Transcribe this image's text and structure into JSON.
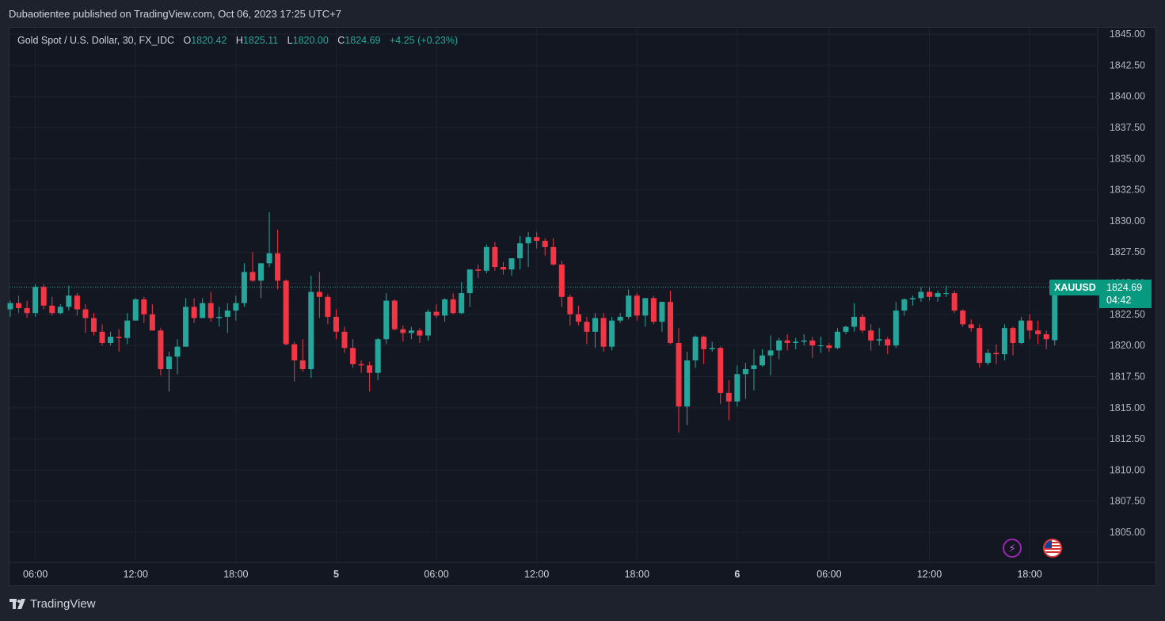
{
  "header": {
    "published_text": "Dubaotientee published on TradingView.com, Oct 06, 2023 17:25 UTC+7"
  },
  "legend": {
    "symbol_text": "Gold Spot / U.S. Dollar, 30, FX_IDC",
    "open_label": "O",
    "open_value": "1820.42",
    "high_label": "H",
    "high_value": "1825.11",
    "low_label": "L",
    "low_value": "1820.00",
    "close_label": "C",
    "close_value": "1824.69",
    "change_text": "+4.25 (+0.23%)"
  },
  "price_badge": {
    "symbol": "XAUUSD",
    "price": "1824.69",
    "countdown": "04:42"
  },
  "footer": {
    "brand": "TradingView"
  },
  "icons": {
    "lightning": "lightning-icon",
    "flag": "us-flag-icon"
  },
  "colors": {
    "up": "#26a69a",
    "down": "#f23645",
    "background": "#131722",
    "grid": "#1f2330",
    "badge": "#089981"
  },
  "chart_data": {
    "type": "candlestick",
    "interval": "30",
    "y_ticks": [
      "1845.00",
      "1842.50",
      "1840.00",
      "1837.50",
      "1835.00",
      "1832.50",
      "1830.00",
      "1827.50",
      "1825.00",
      "1822.50",
      "1820.00",
      "1817.50",
      "1815.00",
      "1812.50",
      "1810.00",
      "1807.50",
      "1805.00"
    ],
    "ylim": [
      1802.5,
      1845.8
    ],
    "x_ticks": [
      {
        "label": "06:00",
        "bar": 3,
        "bold": false
      },
      {
        "label": "12:00",
        "bar": 15,
        "bold": false
      },
      {
        "label": "18:00",
        "bar": 27,
        "bold": false
      },
      {
        "label": "5",
        "bar": 39,
        "bold": true
      },
      {
        "label": "06:00",
        "bar": 51,
        "bold": false
      },
      {
        "label": "12:00",
        "bar": 63,
        "bold": false
      },
      {
        "label": "18:00",
        "bar": 75,
        "bold": false
      },
      {
        "label": "6",
        "bar": 87,
        "bold": true
      },
      {
        "label": "06:00",
        "bar": 98,
        "bold": false
      },
      {
        "label": "12:00",
        "bar": 110,
        "bold": false
      },
      {
        "label": "18:00",
        "bar": 122,
        "bold": false
      }
    ],
    "last_price": 1824.69,
    "ohlc": [
      [
        1822.9,
        1823.6,
        1822.3,
        1823.4
      ],
      [
        1823.4,
        1824.0,
        1822.6,
        1823.0
      ],
      [
        1823.0,
        1823.6,
        1822.2,
        1822.6
      ],
      [
        1822.6,
        1824.9,
        1822.3,
        1824.7
      ],
      [
        1824.7,
        1824.9,
        1822.9,
        1823.2
      ],
      [
        1823.2,
        1823.9,
        1822.4,
        1822.6
      ],
      [
        1822.6,
        1823.3,
        1822.5,
        1823.1
      ],
      [
        1823.1,
        1824.8,
        1822.8,
        1824.0
      ],
      [
        1824.0,
        1824.2,
        1822.4,
        1822.9
      ],
      [
        1822.9,
        1823.3,
        1821.0,
        1822.2
      ],
      [
        1822.2,
        1822.6,
        1820.8,
        1821.1
      ],
      [
        1821.1,
        1821.7,
        1820.0,
        1820.2
      ],
      [
        1820.2,
        1821.1,
        1820.0,
        1820.7
      ],
      [
        1820.7,
        1821.3,
        1819.5,
        1820.6
      ],
      [
        1820.6,
        1822.6,
        1820.1,
        1822.0
      ],
      [
        1822.0,
        1823.8,
        1822.0,
        1823.7
      ],
      [
        1823.7,
        1823.9,
        1821.8,
        1822.5
      ],
      [
        1822.5,
        1823.3,
        1821.2,
        1821.2
      ],
      [
        1821.2,
        1821.4,
        1817.6,
        1818.1
      ],
      [
        1818.1,
        1819.5,
        1816.3,
        1819.1
      ],
      [
        1819.1,
        1820.5,
        1817.7,
        1819.9
      ],
      [
        1819.9,
        1823.8,
        1819.9,
        1823.1
      ],
      [
        1823.1,
        1823.8,
        1821.8,
        1822.2
      ],
      [
        1822.2,
        1823.8,
        1822.2,
        1823.4
      ],
      [
        1823.4,
        1824.3,
        1821.9,
        1822.2
      ],
      [
        1822.2,
        1823.1,
        1821.5,
        1822.3
      ],
      [
        1822.3,
        1823.4,
        1821.0,
        1822.8
      ],
      [
        1822.8,
        1824.0,
        1822.0,
        1823.4
      ],
      [
        1823.4,
        1826.6,
        1823.1,
        1825.9
      ],
      [
        1825.9,
        1827.5,
        1825.1,
        1825.2
      ],
      [
        1825.2,
        1826.6,
        1823.8,
        1826.6
      ],
      [
        1826.6,
        1830.7,
        1826.3,
        1827.4
      ],
      [
        1827.4,
        1829.3,
        1824.5,
        1825.2
      ],
      [
        1825.2,
        1825.3,
        1820.0,
        1820.1
      ],
      [
        1820.1,
        1820.3,
        1817.1,
        1818.8
      ],
      [
        1818.8,
        1820.5,
        1817.9,
        1818.1
      ],
      [
        1818.1,
        1825.6,
        1817.4,
        1824.3
      ],
      [
        1824.3,
        1825.9,
        1822.2,
        1823.9
      ],
      [
        1823.9,
        1824.1,
        1821.7,
        1822.3
      ],
      [
        1822.3,
        1822.9,
        1820.5,
        1821.1
      ],
      [
        1821.1,
        1821.5,
        1819.4,
        1819.8
      ],
      [
        1819.8,
        1820.5,
        1818.2,
        1818.5
      ],
      [
        1818.5,
        1818.8,
        1817.8,
        1818.4
      ],
      [
        1818.4,
        1818.7,
        1816.3,
        1817.8
      ],
      [
        1817.8,
        1820.6,
        1817.2,
        1820.5
      ],
      [
        1820.5,
        1824.2,
        1820.1,
        1823.6
      ],
      [
        1823.6,
        1823.7,
        1821.2,
        1821.3
      ],
      [
        1821.3,
        1821.6,
        1820.3,
        1821.0
      ],
      [
        1821.0,
        1821.5,
        1820.5,
        1821.2
      ],
      [
        1821.2,
        1821.4,
        1820.2,
        1820.8
      ],
      [
        1820.8,
        1822.9,
        1820.4,
        1822.7
      ],
      [
        1822.7,
        1823.3,
        1822.2,
        1822.4
      ],
      [
        1822.4,
        1823.8,
        1821.9,
        1823.7
      ],
      [
        1823.7,
        1824.2,
        1822.5,
        1822.6
      ],
      [
        1822.6,
        1825.1,
        1822.5,
        1824.2
      ],
      [
        1824.2,
        1826.1,
        1823.1,
        1826.1
      ],
      [
        1826.1,
        1826.5,
        1825.4,
        1826.0
      ],
      [
        1826.0,
        1828.1,
        1825.8,
        1827.9
      ],
      [
        1827.9,
        1828.3,
        1826.0,
        1826.3
      ],
      [
        1826.3,
        1826.7,
        1825.7,
        1826.1
      ],
      [
        1826.1,
        1827.0,
        1825.6,
        1827.0
      ],
      [
        1827.0,
        1828.8,
        1826.1,
        1828.2
      ],
      [
        1828.2,
        1829.1,
        1826.3,
        1828.7
      ],
      [
        1828.7,
        1829.1,
        1827.8,
        1828.4
      ],
      [
        1828.4,
        1828.6,
        1827.2,
        1827.9
      ],
      [
        1827.9,
        1828.6,
        1826.4,
        1826.5
      ],
      [
        1826.5,
        1826.8,
        1823.1,
        1823.9
      ],
      [
        1823.9,
        1824.1,
        1821.6,
        1822.5
      ],
      [
        1822.5,
        1823.2,
        1821.6,
        1821.9
      ],
      [
        1821.9,
        1822.3,
        1820.1,
        1821.1
      ],
      [
        1821.1,
        1822.6,
        1819.8,
        1822.2
      ],
      [
        1822.2,
        1822.6,
        1819.5,
        1819.9
      ],
      [
        1819.9,
        1822.3,
        1819.6,
        1822.0
      ],
      [
        1822.0,
        1822.6,
        1821.8,
        1822.3
      ],
      [
        1822.3,
        1824.5,
        1822.1,
        1824.0
      ],
      [
        1824.0,
        1824.2,
        1822.0,
        1822.4
      ],
      [
        1822.4,
        1823.8,
        1821.5,
        1823.8
      ],
      [
        1823.8,
        1824.0,
        1821.7,
        1821.9
      ],
      [
        1821.9,
        1823.5,
        1821.1,
        1823.5
      ],
      [
        1823.5,
        1824.4,
        1820.1,
        1820.2
      ],
      [
        1820.2,
        1821.4,
        1813.0,
        1815.1
      ],
      [
        1815.1,
        1819.5,
        1813.6,
        1818.8
      ],
      [
        1818.8,
        1820.8,
        1818.2,
        1820.7
      ],
      [
        1820.7,
        1820.8,
        1818.5,
        1819.7
      ],
      [
        1819.7,
        1820.3,
        1819.5,
        1819.8
      ],
      [
        1819.8,
        1819.9,
        1815.3,
        1816.2
      ],
      [
        1816.2,
        1817.2,
        1814.0,
        1815.5
      ],
      [
        1815.5,
        1818.4,
        1815.1,
        1817.7
      ],
      [
        1817.7,
        1818.6,
        1815.7,
        1818.1
      ],
      [
        1818.1,
        1819.7,
        1816.4,
        1818.4
      ],
      [
        1818.4,
        1819.7,
        1818.3,
        1819.2
      ],
      [
        1819.2,
        1820.8,
        1817.6,
        1819.6
      ],
      [
        1819.6,
        1820.6,
        1818.9,
        1820.4
      ],
      [
        1820.4,
        1820.9,
        1819.6,
        1820.2
      ],
      [
        1820.2,
        1820.6,
        1819.7,
        1820.3
      ],
      [
        1820.3,
        1820.9,
        1820.0,
        1820.4
      ],
      [
        1820.4,
        1820.7,
        1819.0,
        1820.0
      ],
      [
        1820.0,
        1820.7,
        1819.4,
        1820.0
      ],
      [
        1820.0,
        1820.2,
        1819.5,
        1819.8
      ],
      [
        1819.8,
        1821.4,
        1819.7,
        1821.1
      ],
      [
        1821.1,
        1821.6,
        1820.9,
        1821.5
      ],
      [
        1821.5,
        1823.4,
        1821.1,
        1822.3
      ],
      [
        1822.3,
        1822.5,
        1821.0,
        1821.2
      ],
      [
        1821.2,
        1821.7,
        1819.6,
        1820.4
      ],
      [
        1820.4,
        1821.4,
        1820.0,
        1820.5
      ],
      [
        1820.5,
        1820.7,
        1819.3,
        1820.0
      ],
      [
        1820.0,
        1823.5,
        1819.8,
        1822.8
      ],
      [
        1822.8,
        1823.8,
        1822.4,
        1823.7
      ],
      [
        1823.7,
        1824.0,
        1823.2,
        1823.8
      ],
      [
        1823.8,
        1824.7,
        1823.5,
        1824.3
      ],
      [
        1824.3,
        1824.7,
        1823.6,
        1823.9
      ],
      [
        1823.9,
        1824.4,
        1823.5,
        1824.2
      ],
      [
        1824.2,
        1824.8,
        1823.9,
        1824.2
      ],
      [
        1824.2,
        1824.4,
        1822.6,
        1822.8
      ],
      [
        1822.8,
        1822.9,
        1821.5,
        1821.7
      ],
      [
        1821.7,
        1822.1,
        1821.1,
        1821.4
      ],
      [
        1821.4,
        1821.7,
        1818.2,
        1818.6
      ],
      [
        1818.6,
        1819.7,
        1818.4,
        1819.4
      ],
      [
        1819.4,
        1820.1,
        1818.5,
        1819.3
      ],
      [
        1819.3,
        1821.7,
        1818.8,
        1821.4
      ],
      [
        1821.4,
        1821.5,
        1819.2,
        1820.2
      ],
      [
        1820.2,
        1822.3,
        1820.1,
        1822.0
      ],
      [
        1822.0,
        1822.5,
        1820.5,
        1821.2
      ],
      [
        1821.2,
        1822.0,
        1820.1,
        1820.9
      ],
      [
        1820.9,
        1821.2,
        1819.7,
        1820.5
      ],
      [
        1820.42,
        1825.11,
        1820.0,
        1824.69
      ]
    ]
  }
}
